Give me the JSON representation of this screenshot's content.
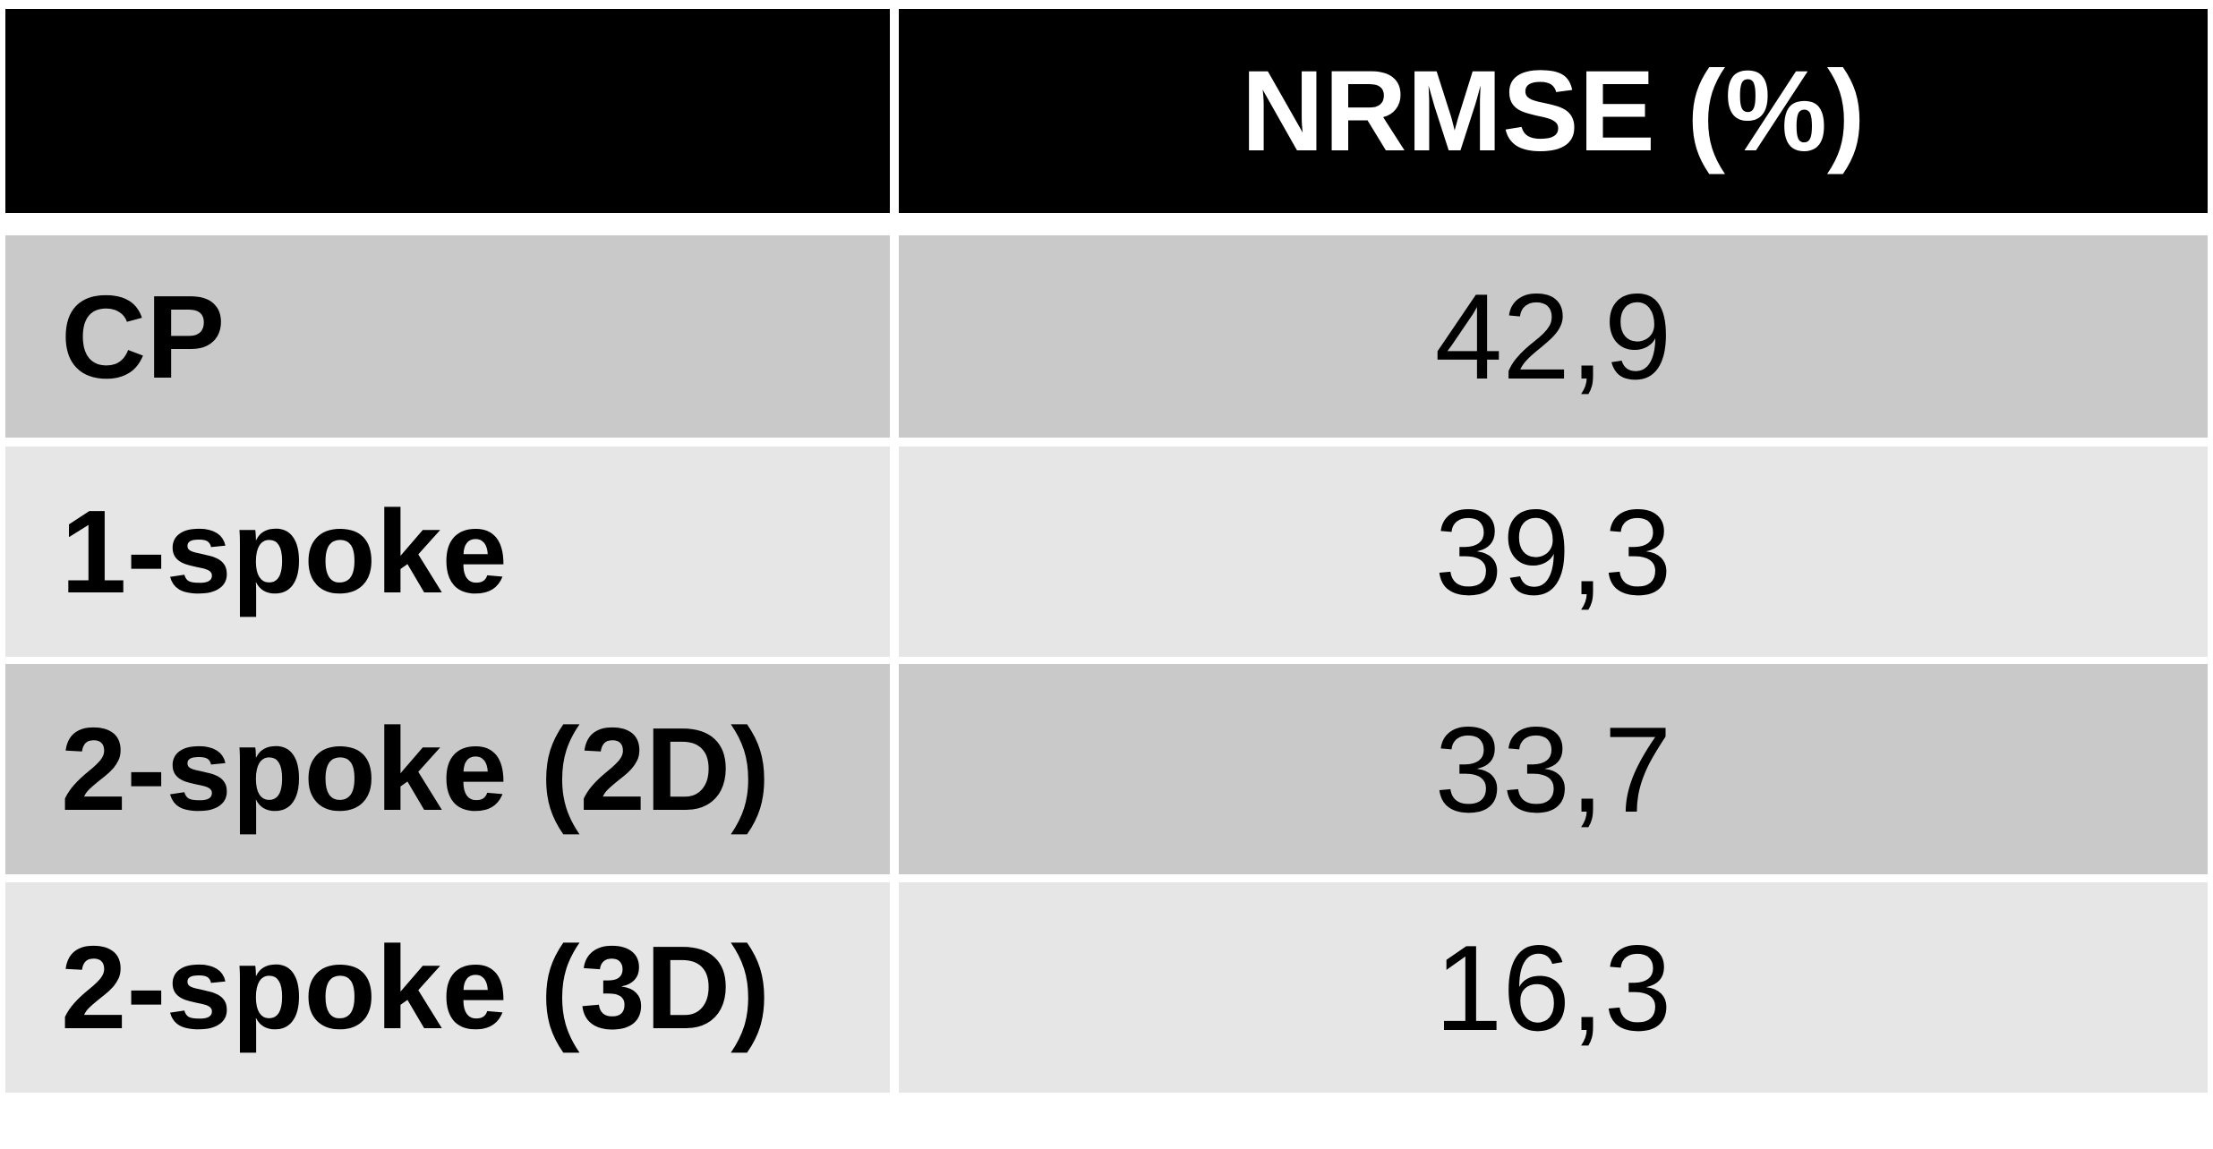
{
  "table": {
    "header": "NRMSE (%)",
    "rows": [
      [
        "CP",
        "42,9"
      ],
      [
        "1-spoke",
        "39,3"
      ],
      [
        "2-spoke (2D)",
        "33,7"
      ],
      [
        "2-spoke (3D)",
        "16,3"
      ]
    ]
  }
}
